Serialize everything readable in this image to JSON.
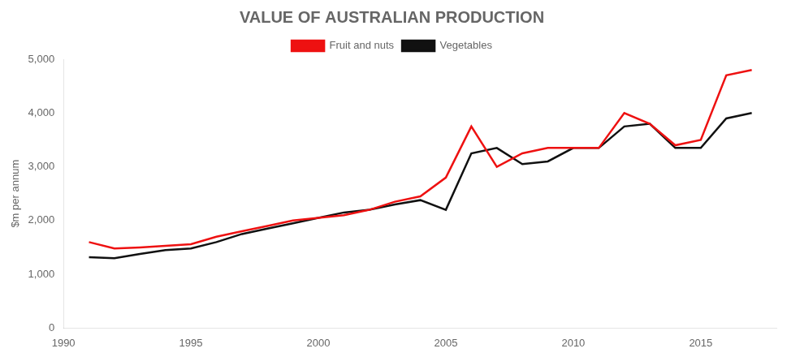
{
  "chart_data": {
    "type": "line",
    "title": "VALUE OF AUSTRALIAN PRODUCTION",
    "y_label": "$m per annum",
    "x": [
      1991,
      1992,
      1993,
      1994,
      1995,
      1996,
      1997,
      1998,
      1999,
      2000,
      2001,
      2002,
      2003,
      2004,
      2005,
      2006,
      2007,
      2008,
      2009,
      2010,
      2011,
      2012,
      2013,
      2014,
      2015,
      2016,
      2017
    ],
    "series": [
      {
        "name": "Fruit and nuts",
        "color": "#ee1111",
        "values": [
          1600,
          1480,
          1500,
          1530,
          1560,
          1700,
          1800,
          1900,
          2000,
          2050,
          2100,
          2200,
          2350,
          2450,
          2800,
          3750,
          3000,
          3250,
          3350,
          3350,
          3350,
          4000,
          3800,
          3400,
          3500,
          4700,
          4800
        ]
      },
      {
        "name": "Vegetables",
        "color": "#111111",
        "values": [
          1320,
          1300,
          1380,
          1450,
          1480,
          1600,
          1750,
          1850,
          1950,
          2050,
          2150,
          2200,
          2300,
          2380,
          2200,
          3250,
          3350,
          3050,
          3100,
          3350,
          3350,
          3750,
          3800,
          3350,
          3350,
          3900,
          4000
        ]
      }
    ],
    "xlim": [
      1990,
      2018
    ],
    "xticks": [
      1990,
      1995,
      2000,
      2005,
      2010,
      2015
    ],
    "ylim": [
      0,
      5000
    ],
    "yticks": [
      0,
      {
        "value": 1000,
        "label": "1,000"
      },
      {
        "value": 2000,
        "label": "2,000"
      },
      {
        "value": 3000,
        "label": "3,000"
      },
      {
        "value": 4000,
        "label": "4,000"
      },
      {
        "value": 5000,
        "label": "5,000"
      }
    ],
    "grid": false,
    "legend": "top"
  }
}
